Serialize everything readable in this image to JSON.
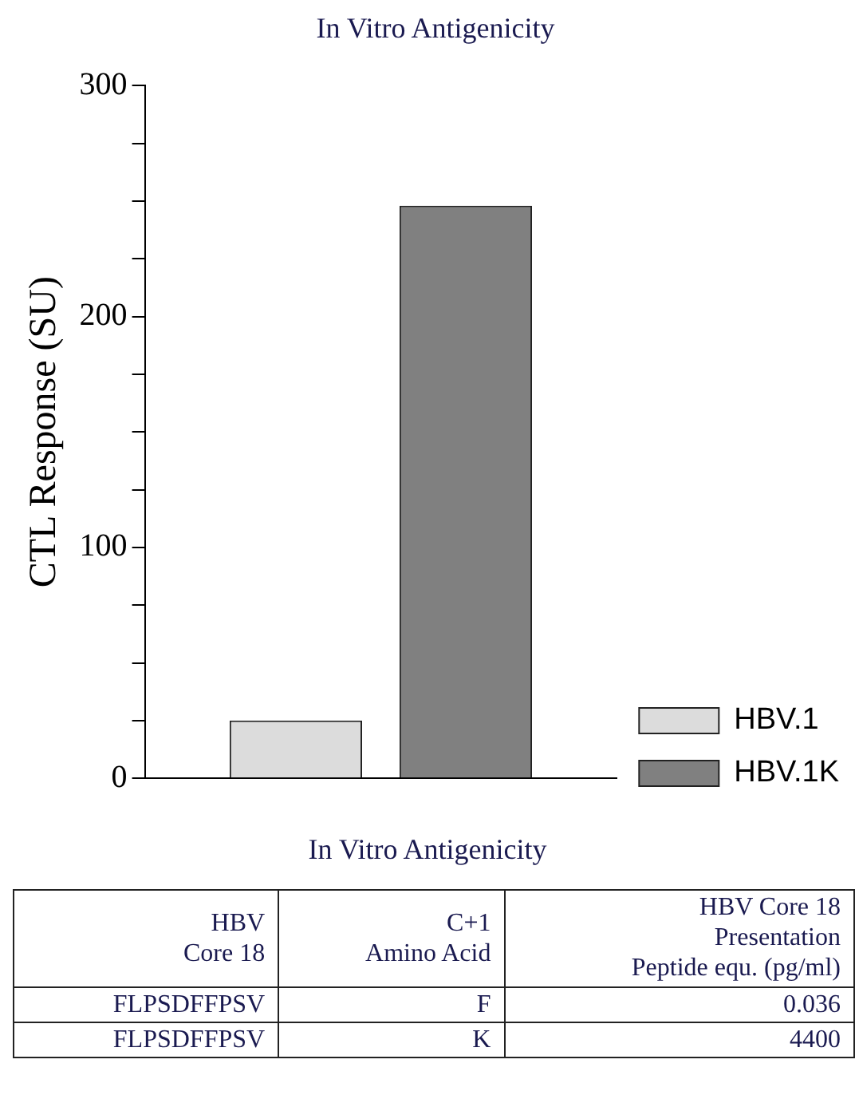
{
  "chart_data": {
    "type": "bar",
    "title": "In Vitro Antigenicity",
    "ylabel": "CTL Response (SU)",
    "categories": [
      null
    ],
    "series": [
      {
        "name": "HBV.1",
        "color": "#dcdcdc",
        "values": [
          25
        ]
      },
      {
        "name": "HBV.1K",
        "color": "#808080",
        "values": [
          248
        ]
      }
    ],
    "ylim": [
      0,
      300
    ],
    "yticks": [
      0,
      {
        "value": 25,
        "label": null
      },
      {
        "value": 50,
        "label": null
      },
      {
        "value": 75,
        "label": null
      },
      100,
      {
        "value": 125,
        "label": null
      },
      {
        "value": 150,
        "label": null
      },
      {
        "value": 175,
        "label": null
      },
      200,
      {
        "value": 225,
        "label": null
      },
      {
        "value": 250,
        "label": null
      },
      {
        "value": 275,
        "label": null
      },
      300
    ],
    "grid": false,
    "legend": "bottom right",
    "annotations": [
      "In Vitro Antigenicity",
      "HBV\nCore 18",
      "C+1\nAmino Acid",
      "HBV Core 18\nPresentation\nPeptide equ. (pg/ml)",
      "FLPSDFFPSV",
      "F",
      "0.036",
      "FLPSDFFPSV",
      "K",
      "4400"
    ]
  }
}
